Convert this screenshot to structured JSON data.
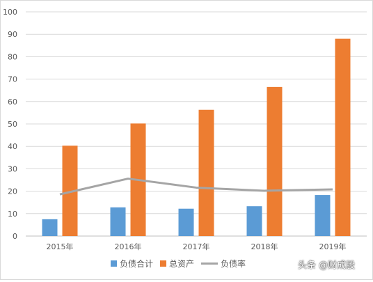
{
  "chart_data": {
    "type": "bar",
    "categories": [
      "2015年",
      "2016年",
      "2017年",
      "2018年",
      "2019年"
    ],
    "series": [
      {
        "name": "负债合计",
        "kind": "bar",
        "color": "#5b9bd5",
        "values": [
          7.5,
          12.8,
          12.2,
          13.3,
          18.3
        ]
      },
      {
        "name": "总资产",
        "kind": "bar",
        "color": "#ed7d31",
        "values": [
          40.3,
          50.2,
          56.3,
          66.5,
          88.0
        ]
      },
      {
        "name": "负债率",
        "kind": "line",
        "color": "#a5a5a5",
        "values": [
          18.6,
          25.6,
          21.6,
          20.2,
          20.8
        ]
      }
    ],
    "ylim": [
      0,
      100
    ],
    "yticks": [
      0,
      10,
      20,
      30,
      40,
      50,
      60,
      70,
      80,
      90,
      100
    ],
    "grid": true,
    "legend_position": "bottom"
  },
  "watermark": "头条 @财成股"
}
